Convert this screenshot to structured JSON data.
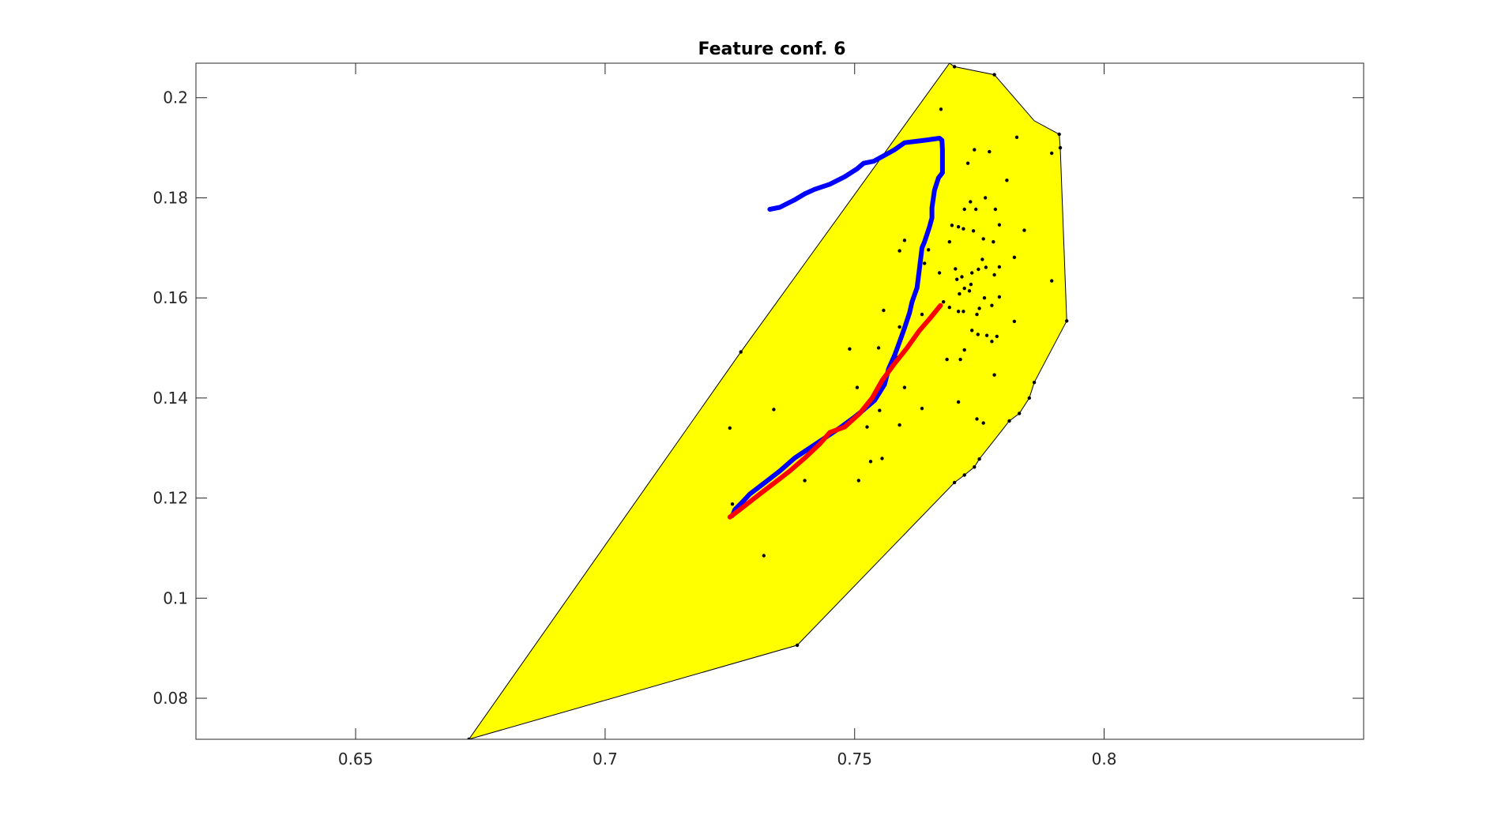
{
  "chart_data": {
    "type": "scatter",
    "title": "Feature conf. 6",
    "xlabel": "",
    "ylabel": "",
    "xlim": [
      0.618,
      0.852
    ],
    "ylim": [
      0.0718,
      0.2069
    ],
    "xticks": [
      0.65,
      0.7,
      0.75,
      0.8
    ],
    "xtick_labels": [
      "0.65",
      "0.7",
      "0.75",
      "0.8"
    ],
    "yticks": [
      0.08,
      0.1,
      0.12,
      0.14,
      0.16,
      0.18,
      0.2
    ],
    "ytick_labels": [
      "0.08",
      "0.1",
      "0.12",
      "0.14",
      "0.16",
      "0.18",
      "0.2"
    ],
    "grid": false,
    "legend": "none",
    "colors": {
      "hull_fill": "#ffff00",
      "hull_edge": "#000000",
      "points": "#000000",
      "series_blue": "#0000ff",
      "series_red": "#ff0000"
    },
    "hull": [
      [
        0.6727,
        0.0718
      ],
      [
        0.7385,
        0.0906
      ],
      [
        0.77,
        0.1231
      ],
      [
        0.772,
        0.1246
      ],
      [
        0.774,
        0.1262
      ],
      [
        0.775,
        0.1278
      ],
      [
        0.781,
        0.1354
      ],
      [
        0.783,
        0.1369
      ],
      [
        0.785,
        0.14
      ],
      [
        0.786,
        0.1431
      ],
      [
        0.7925,
        0.1554
      ],
      [
        0.7912,
        0.19
      ],
      [
        0.791,
        0.1927
      ],
      [
        0.786,
        0.1954
      ],
      [
        0.778,
        0.2046
      ],
      [
        0.77,
        0.2062
      ],
      [
        0.769,
        0.2069
      ],
      [
        0.7272,
        0.1492
      ]
    ],
    "points": [
      [
        0.7727,
        0.1869
      ],
      [
        0.77,
        0.2062
      ],
      [
        0.778,
        0.2046
      ],
      [
        0.7673,
        0.1977
      ],
      [
        0.7825,
        0.1921
      ],
      [
        0.791,
        0.1927
      ],
      [
        0.774,
        0.1896
      ],
      [
        0.777,
        0.1892
      ],
      [
        0.7895,
        0.1889
      ],
      [
        0.7805,
        0.1835
      ],
      [
        0.772,
        0.1777
      ],
      [
        0.7732,
        0.1792
      ],
      [
        0.7762,
        0.18
      ],
      [
        0.7743,
        0.1777
      ],
      [
        0.7782,
        0.1777
      ],
      [
        0.7695,
        0.1745
      ],
      [
        0.7708,
        0.1742
      ],
      [
        0.779,
        0.1746
      ],
      [
        0.7718,
        0.1738
      ],
      [
        0.7738,
        0.1734
      ],
      [
        0.784,
        0.1735
      ],
      [
        0.769,
        0.1712
      ],
      [
        0.7758,
        0.1718
      ],
      [
        0.7778,
        0.1712
      ],
      [
        0.76,
        0.1715
      ],
      [
        0.759,
        0.1694
      ],
      [
        0.782,
        0.1681
      ],
      [
        0.7648,
        0.1696
      ],
      [
        0.764,
        0.1669
      ],
      [
        0.7756,
        0.1677
      ],
      [
        0.7748,
        0.1657
      ],
      [
        0.7763,
        0.1661
      ],
      [
        0.7702,
        0.1658
      ],
      [
        0.779,
        0.1662
      ],
      [
        0.7715,
        0.1642
      ],
      [
        0.7735,
        0.165
      ],
      [
        0.7705,
        0.1637
      ],
      [
        0.778,
        0.1646
      ],
      [
        0.767,
        0.165
      ],
      [
        0.772,
        0.1619
      ],
      [
        0.773,
        0.1614
      ],
      [
        0.771,
        0.1608
      ],
      [
        0.7733,
        0.1627
      ],
      [
        0.7895,
        0.1634
      ],
      [
        0.776,
        0.16
      ],
      [
        0.779,
        0.1602
      ],
      [
        0.7678,
        0.1592
      ],
      [
        0.769,
        0.1581
      ],
      [
        0.7558,
        0.1575
      ],
      [
        0.7708,
        0.1573
      ],
      [
        0.7718,
        0.1573
      ],
      [
        0.775,
        0.1579
      ],
      [
        0.7775,
        0.1585
      ],
      [
        0.7745,
        0.1567
      ],
      [
        0.7635,
        0.1567
      ],
      [
        0.759,
        0.1542
      ],
      [
        0.782,
        0.1553
      ],
      [
        0.7735,
        0.1535
      ],
      [
        0.7747,
        0.1527
      ],
      [
        0.7765,
        0.1525
      ],
      [
        0.7775,
        0.1513
      ],
      [
        0.7785,
        0.1523
      ],
      [
        0.7548,
        0.15
      ],
      [
        0.749,
        0.1498
      ],
      [
        0.772,
        0.1496
      ],
      [
        0.7585,
        0.1481
      ],
      [
        0.7685,
        0.1477
      ],
      [
        0.7712,
        0.1477
      ],
      [
        0.7575,
        0.146
      ],
      [
        0.778,
        0.1446
      ],
      [
        0.7505,
        0.1421
      ],
      [
        0.76,
        0.1421
      ],
      [
        0.7708,
        0.1392
      ],
      [
        0.7338,
        0.1377
      ],
      [
        0.7635,
        0.1379
      ],
      [
        0.755,
        0.1375
      ],
      [
        0.7745,
        0.1358
      ],
      [
        0.7758,
        0.135
      ],
      [
        0.725,
        0.134
      ],
      [
        0.759,
        0.1346
      ],
      [
        0.7525,
        0.1342
      ],
      [
        0.7555,
        0.1279
      ],
      [
        0.7532,
        0.1273
      ],
      [
        0.74,
        0.1235
      ],
      [
        0.7508,
        0.1235
      ],
      [
        0.7255,
        0.1188
      ],
      [
        0.7318,
        0.1085
      ],
      [
        0.7272,
        0.1492
      ],
      [
        0.7385,
        0.0906
      ],
      [
        0.6727,
        0.0718
      ],
      [
        0.7925,
        0.1554
      ],
      [
        0.7912,
        0.19
      ],
      [
        0.786,
        0.1431
      ],
      [
        0.785,
        0.14
      ],
      [
        0.783,
        0.1369
      ],
      [
        0.781,
        0.1354
      ],
      [
        0.775,
        0.1278
      ],
      [
        0.774,
        0.1262
      ],
      [
        0.772,
        0.1246
      ],
      [
        0.77,
        0.1231
      ]
    ],
    "series": [
      {
        "color": "blue",
        "values": [
          [
            0.733,
            0.1777
          ],
          [
            0.735,
            0.1781
          ],
          [
            0.738,
            0.1796
          ],
          [
            0.74,
            0.1808
          ],
          [
            0.742,
            0.1817
          ],
          [
            0.745,
            0.1827
          ],
          [
            0.748,
            0.1842
          ],
          [
            0.7505,
            0.1858
          ],
          [
            0.7518,
            0.1869
          ],
          [
            0.7538,
            0.1873
          ],
          [
            0.758,
            0.1896
          ],
          [
            0.76,
            0.191
          ],
          [
            0.764,
            0.1915
          ],
          [
            0.767,
            0.1919
          ],
          [
            0.7675,
            0.1915
          ],
          [
            0.7676,
            0.1896
          ],
          [
            0.7676,
            0.185
          ],
          [
            0.7668,
            0.184
          ],
          [
            0.766,
            0.1815
          ],
          [
            0.7655,
            0.178
          ],
          [
            0.7655,
            0.176
          ],
          [
            0.765,
            0.1742
          ],
          [
            0.764,
            0.1712
          ],
          [
            0.7635,
            0.17
          ],
          [
            0.763,
            0.166
          ],
          [
            0.7625,
            0.162
          ],
          [
            0.7615,
            0.1592
          ],
          [
            0.761,
            0.157
          ],
          [
            0.76,
            0.154
          ],
          [
            0.759,
            0.1512
          ],
          [
            0.758,
            0.1485
          ],
          [
            0.7568,
            0.1458
          ],
          [
            0.756,
            0.1427
          ],
          [
            0.754,
            0.1395
          ],
          [
            0.7515,
            0.1374
          ],
          [
            0.75,
            0.1362
          ],
          [
            0.747,
            0.134
          ],
          [
            0.744,
            0.132
          ],
          [
            0.741,
            0.13
          ],
          [
            0.738,
            0.128
          ],
          [
            0.735,
            0.1254
          ],
          [
            0.732,
            0.1231
          ],
          [
            0.729,
            0.1208
          ],
          [
            0.7275,
            0.1192
          ],
          [
            0.726,
            0.1177
          ],
          [
            0.7255,
            0.1165
          ]
        ]
      },
      {
        "color": "red",
        "values": [
          [
            0.725,
            0.1162
          ],
          [
            0.727,
            0.1177
          ],
          [
            0.731,
            0.1208
          ],
          [
            0.734,
            0.1231
          ],
          [
            0.737,
            0.1254
          ],
          [
            0.74,
            0.128
          ],
          [
            0.743,
            0.1308
          ],
          [
            0.745,
            0.1331
          ],
          [
            0.748,
            0.1342
          ],
          [
            0.751,
            0.1369
          ],
          [
            0.7535,
            0.14
          ],
          [
            0.7555,
            0.1435
          ],
          [
            0.758,
            0.1469
          ],
          [
            0.7605,
            0.15
          ],
          [
            0.763,
            0.1535
          ],
          [
            0.765,
            0.1558
          ],
          [
            0.7672,
            0.1585
          ]
        ]
      }
    ]
  }
}
